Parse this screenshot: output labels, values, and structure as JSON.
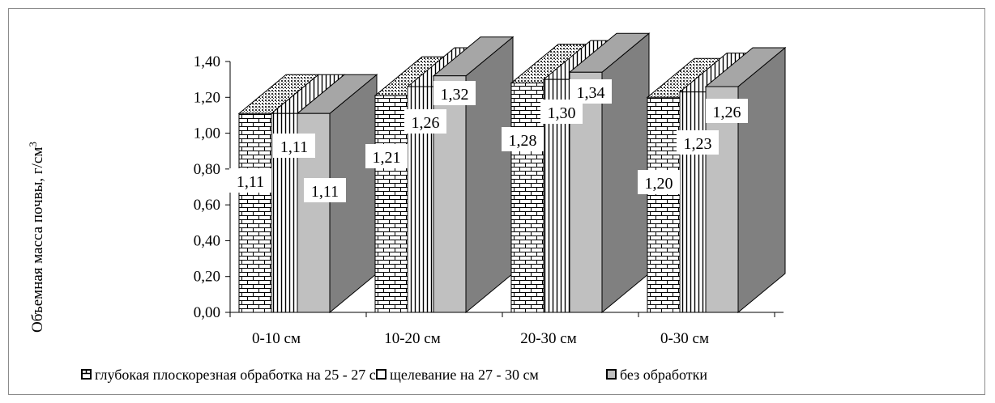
{
  "chart_data": {
    "type": "bar",
    "subtype": "3d-column",
    "ylabel": "Объемная масса почвы, г/см",
    "ylabel_sup": "3",
    "ylim": [
      0,
      1.4
    ],
    "yticks": [
      "0,00",
      "0,20",
      "0,40",
      "0,60",
      "0,80",
      "1,00",
      "1,20",
      "1,40"
    ],
    "categories": [
      "0-10 см",
      "10-20 см",
      "20-30 см",
      "0-30 см"
    ],
    "series": [
      {
        "name": "глубокая плоскорезная обработка на 25 - 27 см",
        "values": [
          1.11,
          1.21,
          1.28,
          1.2
        ],
        "labels": [
          "1,11",
          "1,21",
          "1,28",
          "1,20"
        ],
        "pattern": "brick"
      },
      {
        "name": "щелевание  на 27 - 30 см",
        "values": [
          1.11,
          1.26,
          1.3,
          1.23
        ],
        "labels": [
          "1,11",
          "1,26",
          "1,30",
          "1,23"
        ],
        "pattern": "vertical-lines"
      },
      {
        "name": "без обработки",
        "values": [
          1.11,
          1.32,
          1.34,
          1.26
        ],
        "labels": [
          "1,11",
          "1,32",
          "1,34",
          "1,26"
        ],
        "pattern": "solid-gray"
      }
    ],
    "legend_position": "bottom",
    "grid": false,
    "colors": {
      "front_gray": "#c0c0c0",
      "side_gray": "#808080",
      "top_gray": "#a6a6a6",
      "outline": "#000000"
    }
  }
}
